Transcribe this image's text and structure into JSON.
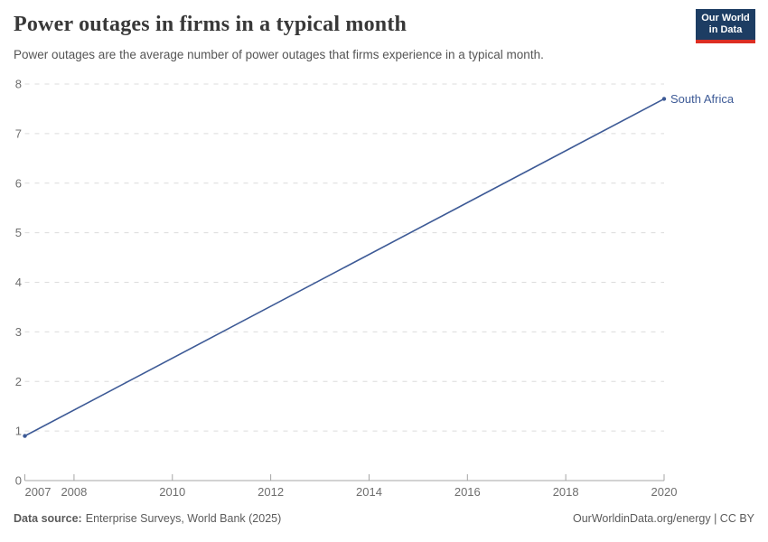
{
  "header": {
    "title": "Power outages in firms in a typical month",
    "subtitle": "Power outages are the average number of power outages that firms experience in a typical month.",
    "logo": {
      "line1": "Our World",
      "line2": "in Data"
    }
  },
  "chart_data": {
    "type": "line",
    "title": "Power outages in firms in a typical month",
    "xlabel": "",
    "ylabel": "",
    "xlim": [
      2007,
      2020
    ],
    "ylim": [
      0,
      8
    ],
    "x_ticks": [
      2007,
      2008,
      2010,
      2012,
      2014,
      2016,
      2018,
      2020
    ],
    "y_ticks": [
      0,
      1,
      2,
      3,
      4,
      5,
      6,
      7,
      8
    ],
    "grid": "horizontal-dashed",
    "legend_position": "end-of-line-label",
    "series": [
      {
        "name": "South Africa",
        "color": "#3d5a96",
        "x": [
          2007,
          2020
        ],
        "values": [
          0.9,
          7.7
        ]
      }
    ]
  },
  "footer": {
    "datasource_label": "Data source:",
    "datasource_value": "Enterprise Surveys, World Bank (2025)",
    "credit": "OurWorldinData.org/energy | CC BY"
  },
  "colors": {
    "accent_blue": "#3d5a96",
    "logo_navy": "#1d3d63",
    "logo_red": "#dc2e23",
    "gridline": "#dcdcdc",
    "axis_line": "#a5a5a5",
    "tick_text": "#6e6e6e"
  }
}
